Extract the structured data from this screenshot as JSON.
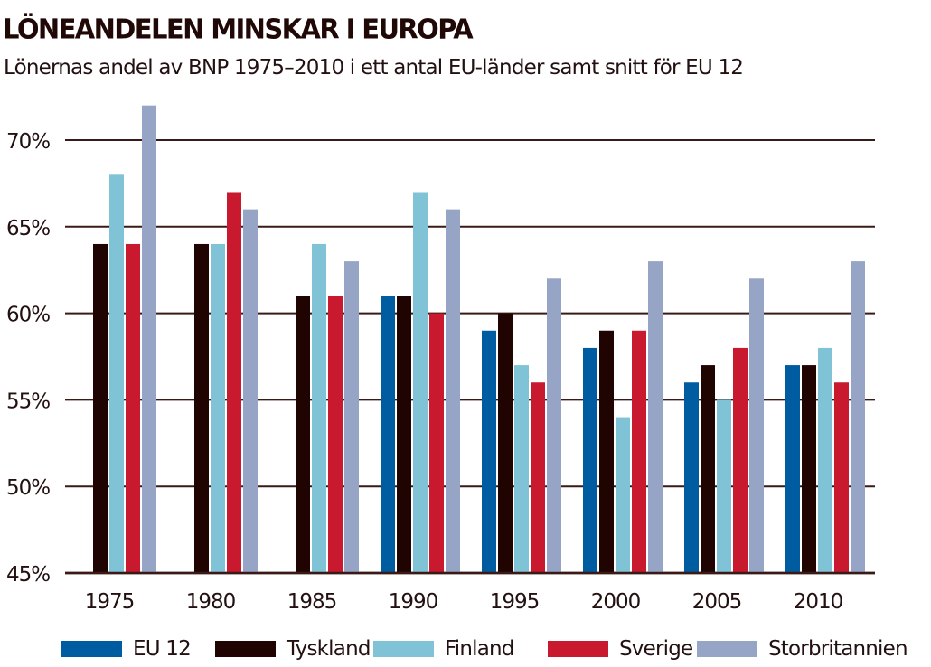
{
  "chart_data": {
    "type": "bar",
    "title": "LÖNEANDELEN MINSKAR I EUROPA",
    "subtitle": "Lönernas andel av BNP 1975–2010 i ett antal EU-länder samt snitt för EU 12",
    "xlabel": "",
    "ylabel": "",
    "categories": [
      "1975",
      "1980",
      "1985",
      "1990",
      "1995",
      "2000",
      "2005",
      "2010"
    ],
    "ylim": [
      45,
      72
    ],
    "yticks": [
      45,
      50,
      55,
      60,
      65,
      70
    ],
    "ytick_labels": [
      "45%",
      "50%",
      "55%",
      "60%",
      "65%",
      "70%"
    ],
    "grid": true,
    "legend_position": "bottom",
    "series": [
      {
        "name": "EU 12",
        "color": "#005ca1",
        "values": [
          null,
          null,
          null,
          61,
          59,
          58,
          56,
          57
        ]
      },
      {
        "name": "Tyskland",
        "color": "#200402",
        "values": [
          64,
          64,
          61,
          61,
          60,
          59,
          57,
          57
        ]
      },
      {
        "name": "Finland",
        "color": "#80c3d7",
        "values": [
          68,
          64,
          64,
          67,
          57,
          54,
          55,
          58
        ]
      },
      {
        "name": "Sverige",
        "color": "#c8192e",
        "values": [
          64,
          67,
          61,
          60,
          56,
          59,
          58,
          56
        ]
      },
      {
        "name": "Storbritannien",
        "color": "#96a4c6",
        "values": [
          72,
          66,
          63,
          66,
          62,
          63,
          62,
          63
        ]
      }
    ]
  },
  "colors": {
    "text": "#231010",
    "gridline": "#3a1a16",
    "background": "#ffffff"
  }
}
